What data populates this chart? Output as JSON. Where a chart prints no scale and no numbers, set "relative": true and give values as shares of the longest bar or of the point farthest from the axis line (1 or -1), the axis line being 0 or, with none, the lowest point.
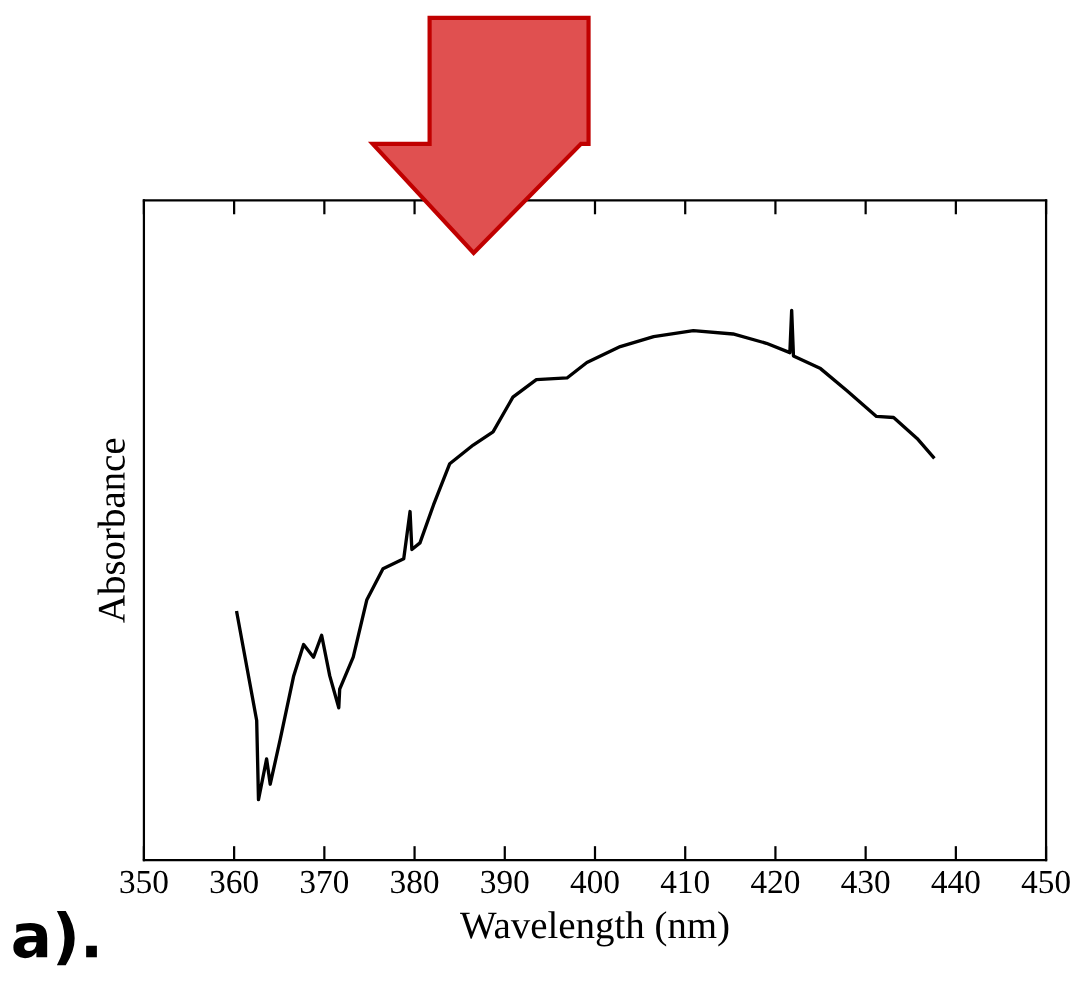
{
  "chart_data": {
    "type": "line",
    "xlabel": "Wavelength (nm)",
    "ylabel": "Absorbance",
    "relative": true,
    "xlim": [
      350,
      450
    ],
    "xticks": [
      350,
      360,
      370,
      380,
      390,
      400,
      410,
      420,
      430,
      440,
      450
    ],
    "annotations": [
      "a)."
    ],
    "grid": false,
    "legend": false,
    "marker": "none",
    "line_style": "solid",
    "series": [
      {
        "color": "#000000",
        "x": [
          360.3,
          362.5,
          362.7,
          363.6,
          364.0,
          365.1,
          366.6,
          367.7,
          368.8,
          369.7,
          370.6,
          371.6,
          371.7,
          373.2,
          374.7,
          376.5,
          378.8,
          379.5,
          379.7,
          380.6,
          382.1,
          383.9,
          386.5,
          388.7,
          390.9,
          393.5,
          396.9,
          399.1,
          402.8,
          406.5,
          410.9,
          415.3,
          419.0,
          421.6,
          421.8,
          422.0,
          425.0,
          427.9,
          431.2,
          433.1,
          435.7,
          437.5
        ],
        "values": [
          0.45,
          0.254,
          0.11,
          0.184,
          0.138,
          0.219,
          0.335,
          0.392,
          0.369,
          0.409,
          0.335,
          0.277,
          0.311,
          0.369,
          0.473,
          0.53,
          0.548,
          0.634,
          0.565,
          0.577,
          0.646,
          0.721,
          0.755,
          0.779,
          0.842,
          0.874,
          0.877,
          0.905,
          0.934,
          0.952,
          0.963,
          0.957,
          0.94,
          0.923,
          1.0,
          0.917,
          0.894,
          0.854,
          0.807,
          0.805,
          0.767,
          0.733
        ]
      }
    ]
  }
}
